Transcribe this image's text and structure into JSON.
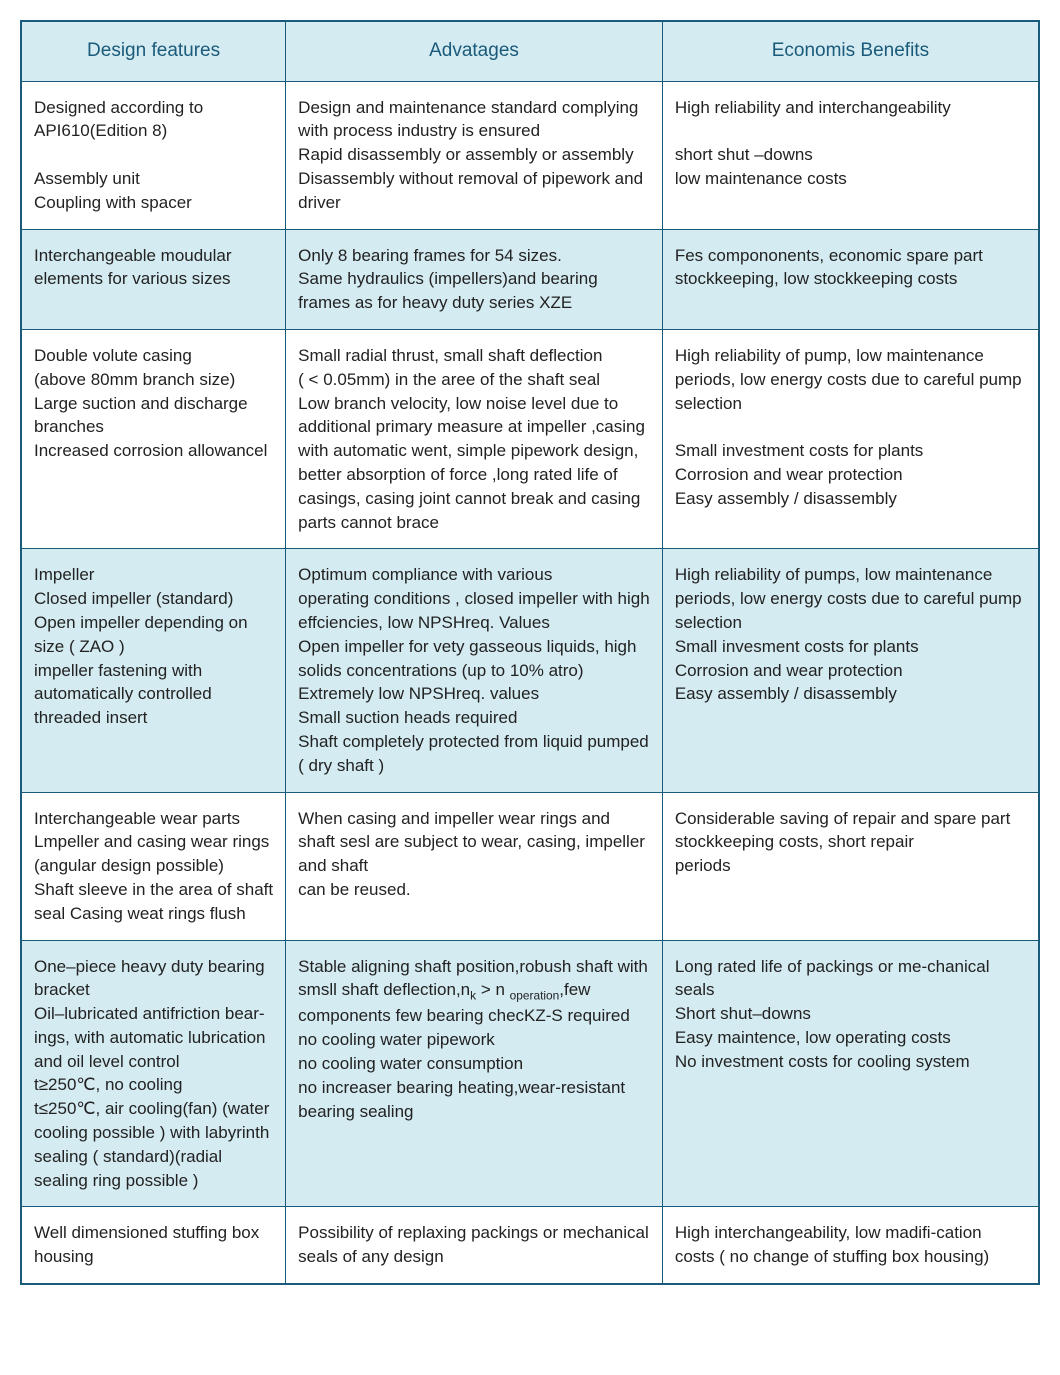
{
  "table": {
    "header_bg": "#d4ebf1",
    "border_color": "#1a5a7a",
    "columns": [
      "Design features",
      "Advatages",
      "Economis Benefits"
    ],
    "column_widths": [
      "26%",
      "37%",
      "37%"
    ],
    "font_size_header": 19,
    "font_size_body": 17,
    "rows": [
      {
        "bg": "#ffffff",
        "c1": "Designed according to\nAPI610(Edition 8)\n\nAssembly unit\nCoupling  with spacer",
        "c2": "Design and maintenance standard complying with process industry is ensured\nRapid disassembly or assembly or assembly\nDisassembly without removal of pipework and driver",
        "c3": "High reliability and interchangeability\n\nshort shut –downs\nlow maintenance costs"
      },
      {
        "bg": "#d4ebf1",
        "c1": "Interchangeable moudular elements for  various sizes",
        "c2": "Only 8 bearing frames for 54 sizes.\nSame hydraulics (impellers)and bearing frames as for heavy duty series XZE",
        "c3": "Fes compononents, economic spare part stockkeeping, low stockkeeping costs"
      },
      {
        "bg": "#ffffff",
        "c1": "Double volute casing\n(above 80mm branch size)\nLarge suction and discharge branches\nIncreased corrosion allowancel",
        "c2": "Small radial thrust, small shaft deflection\n( < 0.05mm) in the aree of the shaft seal\nLow branch velocity, low noise level due to additional primary measure at impeller ,casing with automatic went, simple pipework design, better absorption of force ,long rated life of casings, casing joint cannot break and casing parts cannot brace",
        "c3": "High reliability of pump, low maintenance periods, low energy costs due to careful pump selection\n\nSmall investment costs for plants\nCorrosion and wear protection\nEasy assembly / disassembly"
      },
      {
        "bg": "#d4ebf1",
        "c1": "Impeller\nClosed  impeller (standard)\nOpen impeller depending on size ( ZAO )\nimpeller fastening with automatically controlled threaded insert",
        "c2": "Optimum compliance with various\noperating conditions , closed impeller with high effciencies, low NPSHreq. Values\nOpen impeller for vety gasseous liquids, high solids concentrations (up to 10% atro)\nExtremely low NPSHreq. values\nSmall suction heads required\nShaft completely protected from liquid pumped  ( dry shaft )",
        "c3": "High reliability of pumps, low maintenance periods, low energy costs due to careful pump selection\nSmall invesment costs for plants\nCorrosion and wear protection\nEasy assembly / disassembly"
      },
      {
        "bg": "#ffffff",
        "c1": "Interchangeable wear parts\nLmpeller and casing wear rings (angular design possible)\nShaft sleeve in the area of shaft seal Casing weat rings flush",
        "c2": "When casing and impeller wear rings and shaft sesl are subject to wear, casing, impeller and shaft\ncan be reused.",
        "c3": "Considerable saving of repair and spare part stockkeeping costs, short repair\nperiods"
      },
      {
        "bg": "#d4ebf1",
        "c1": "One–piece heavy duty bearing bracket\nOil–lubricated antifriction bear-ings, with automatic lubrication and oil level control\nt≥250℃, no cooling\nt≤250℃, air cooling(fan) (water cooling possible ) with labyrinth sealing ( standard)(radial sealing ring possible )",
        "c2_html": "Stable aligning shaft position,robush shaft with smsll shaft deflection,n<sub>k</sub> > n <sub>operation</sub>,few components few bearing checKZ-S required\nno cooling water pipework\nno cooling water consumption\nno increaser bearing heating,wear-resistant bearing sealing",
        "c3": "Long rated life of packings or me-chanical seals\nShort shut–downs\nEasy maintence, low operating costs\nNo investment costs for cooling system"
      },
      {
        "bg": "#ffffff",
        "c1": "Well dimensioned stuffing box housing",
        "c2": "Possibility of replaxing packings or mechanical seals of any design",
        "c3": "High interchangeability, low madifi-cation\ncosts ( no change of stuffing box housing)"
      }
    ]
  }
}
